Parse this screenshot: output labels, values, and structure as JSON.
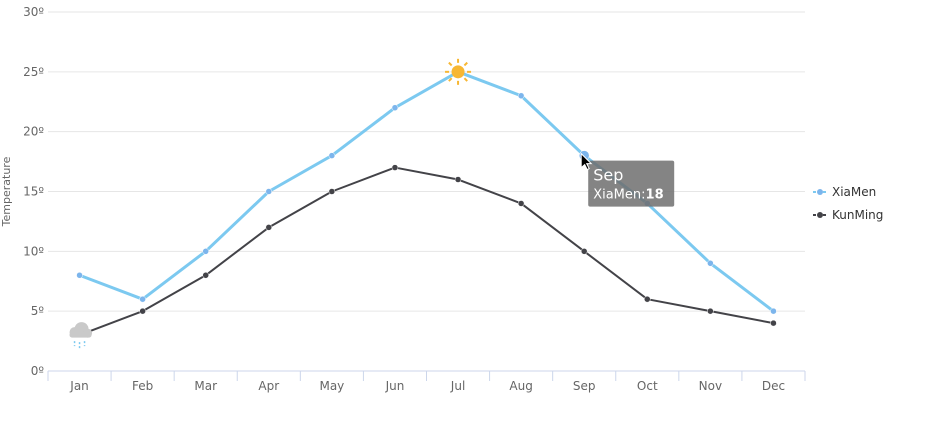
{
  "chart_data": {
    "type": "line",
    "title": "",
    "xlabel": "",
    "ylabel": "Temperature",
    "categories": [
      "Jan",
      "Feb",
      "Mar",
      "Apr",
      "May",
      "Jun",
      "Jul",
      "Aug",
      "Sep",
      "Oct",
      "Nov",
      "Dec"
    ],
    "ylim": [
      0,
      30
    ],
    "yticks": [
      "0º",
      "5º",
      "10º",
      "15º",
      "20º",
      "25º",
      "30º"
    ],
    "grid": true,
    "legend_placement": "right",
    "series": [
      {
        "name": "XiaMen",
        "color": "#7cc9f0",
        "marker_color": "#7cb5ec",
        "values": [
          8,
          6,
          10,
          15,
          18,
          22,
          25,
          23,
          18,
          14,
          9,
          5
        ],
        "special_markers": {
          "Jul": "sun-icon"
        }
      },
      {
        "name": "KunMing",
        "color": "#434348",
        "marker_color": "#434348",
        "values": [
          3,
          5,
          8,
          12,
          15,
          17,
          16,
          14,
          10,
          6,
          5,
          4
        ],
        "special_markers": {
          "Jan": "rain-cloud-icon"
        }
      }
    ],
    "tooltip": {
      "title": "Sep",
      "series": "XiaMen",
      "separator": ":",
      "value": "18"
    }
  }
}
